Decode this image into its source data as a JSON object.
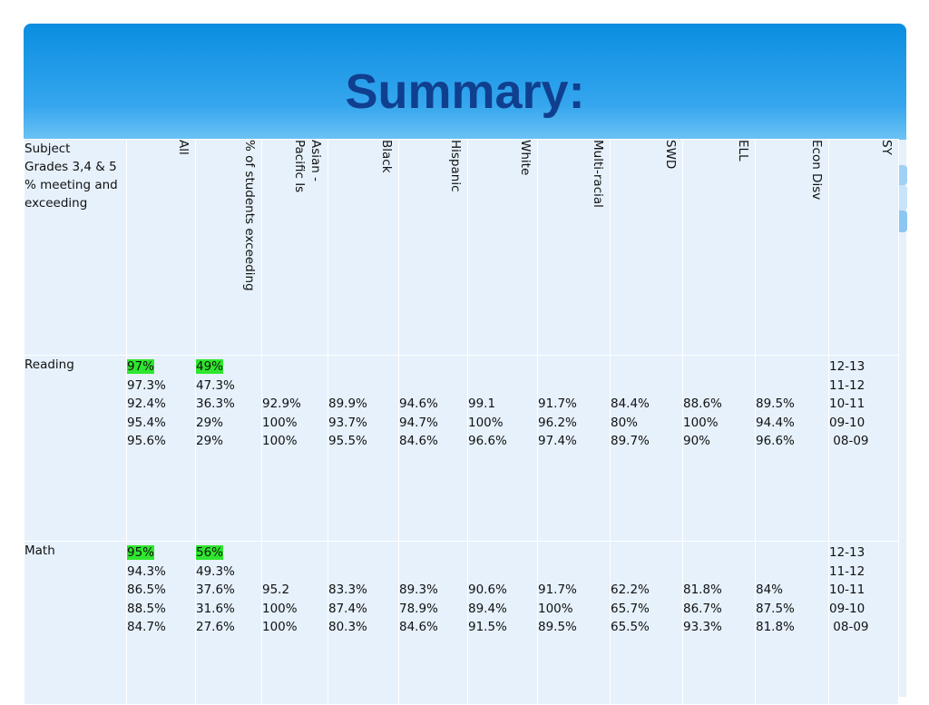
{
  "slide": {
    "title": "Summary:"
  },
  "table": {
    "corner_label": "Subject\nGrades 3,4 & 5\n% meeting and\nexceeding",
    "columns": [
      "All",
      "% of students exceeding",
      "Asian -\nPacific Is",
      "Black",
      "Hispanic",
      "White",
      "Multi-racial",
      "SWD",
      "ELL",
      "Econ Disv",
      "SY"
    ],
    "rows": [
      {
        "subject": "Reading",
        "all": [
          "97%",
          "97.3%",
          "92.4%",
          "95.4%",
          "95.6%"
        ],
        "exceeding": [
          "49%",
          "47.3%",
          "36.3%",
          "29%",
          "29%"
        ],
        "asian": [
          "92.9%",
          "100%",
          "100%"
        ],
        "black": [
          "89.9%",
          "93.7%",
          "95.5%"
        ],
        "hispanic": [
          "94.6%",
          "94.7%",
          "84.6%"
        ],
        "white": [
          "99.1",
          "100%",
          "96.6%"
        ],
        "multi": [
          "91.7%",
          "96.2%",
          "97.4%"
        ],
        "swd": [
          "84.4%",
          "80%",
          "89.7%"
        ],
        "ell": [
          "88.6%",
          "100%",
          "90%"
        ],
        "econ": [
          "89.5%",
          "94.4%",
          "96.6%"
        ],
        "sy": [
          "12-13",
          "11-12",
          "10-11",
          "09-10",
          " 08-09"
        ]
      },
      {
        "subject": "Math",
        "all": [
          "95%",
          "94.3%",
          "86.5%",
          "88.5%",
          "84.7%"
        ],
        "exceeding": [
          "56%",
          "49.3%",
          "37.6%",
          "31.6%",
          "27.6%"
        ],
        "asian": [
          "95.2",
          "100%",
          "100%"
        ],
        "black": [
          "83.3%",
          "87.4%",
          "80.3%"
        ],
        "hispanic": [
          "89.3%",
          "78.9%",
          "84.6%"
        ],
        "white": [
          "90.6%",
          "89.4%",
          "91.5%"
        ],
        "multi": [
          "91.7%",
          "100%",
          "89.5%"
        ],
        "swd": [
          "62.2%",
          "65.7%",
          "65.5%"
        ],
        "ell": [
          "81.8%",
          "86.7%",
          "93.3%"
        ],
        "econ": [
          "84%",
          "87.5%",
          "81.8%"
        ],
        "sy": [
          "12-13",
          "11-12",
          "10-11",
          "09-10",
          " 08-09"
        ]
      }
    ]
  },
  "colors": {
    "title": "#103f8f",
    "header_gradient_top": "#0a8ee0",
    "cell_background": "#e6f1fb",
    "highlight": "#2ee62e"
  }
}
